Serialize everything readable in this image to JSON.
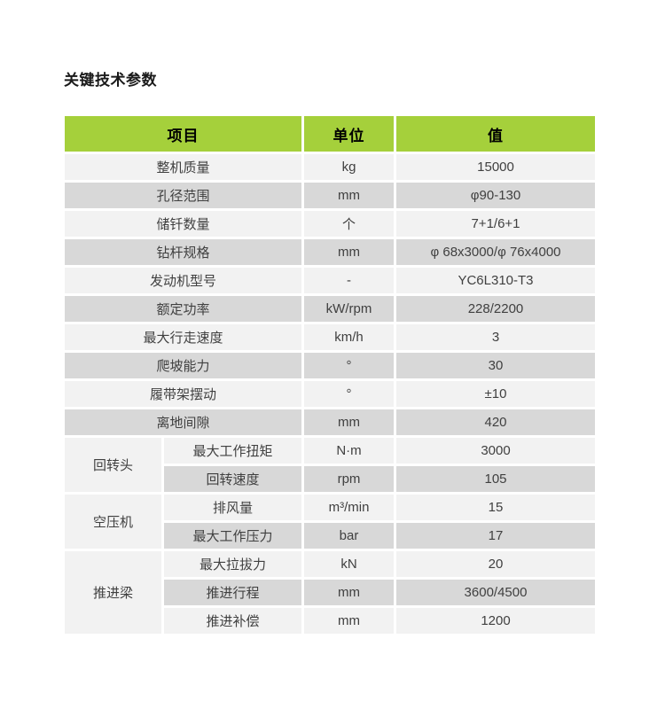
{
  "page": {
    "title": "关键技术参数"
  },
  "colors": {
    "header_green": "#a5d03b",
    "row_light": "#f2f2f2",
    "row_dark": "#d8d8d8",
    "cell_text": "#404040",
    "header_text": "#000000"
  },
  "table": {
    "headers": [
      "项目",
      "单位",
      "值"
    ],
    "rows": [
      {
        "item": "整机质量",
        "unit": "kg",
        "value": "15000"
      },
      {
        "item": "孔径范围",
        "unit": "mm",
        "value": "φ90-130"
      },
      {
        "item": "储钎数量",
        "unit": "个",
        "value": "7+1/6+1"
      },
      {
        "item": "钻杆规格",
        "unit": "mm",
        "value": "φ 68x3000/φ 76x4000"
      },
      {
        "item": "发动机型号",
        "unit": "-",
        "value": "YC6L310-T3"
      },
      {
        "item": "额定功率",
        "unit": "kW/rpm",
        "value": "228/2200"
      },
      {
        "item": "最大行走速度",
        "unit": "km/h",
        "value": "3"
      },
      {
        "item": "爬坡能力",
        "unit": "°",
        "value": "30"
      },
      {
        "item": "履带架摆动",
        "unit": "°",
        "value": "±10"
      },
      {
        "item": "离地间隙",
        "unit": "mm",
        "value": "420"
      },
      {
        "group": "回转头",
        "group_rows": 2,
        "in_group": true,
        "item": "最大工作扭矩",
        "unit": "N·m",
        "value": "3000"
      },
      {
        "in_group": true,
        "item": "回转速度",
        "unit": "rpm",
        "value": "105"
      },
      {
        "group": "空压机",
        "group_rows": 2,
        "in_group": true,
        "item": "排风量",
        "unit": "m³/min",
        "value": "15"
      },
      {
        "in_group": true,
        "item": "最大工作压力",
        "unit": "bar",
        "value": "17"
      },
      {
        "group": "推进梁",
        "group_rows": 3,
        "in_group": true,
        "item": "最大拉拔力",
        "unit": "kN",
        "value": "20"
      },
      {
        "in_group": true,
        "item": "推进行程",
        "unit": "mm",
        "value": "3600/4500"
      },
      {
        "in_group": true,
        "item": "推进补偿",
        "unit": "mm",
        "value": "1200"
      }
    ]
  }
}
